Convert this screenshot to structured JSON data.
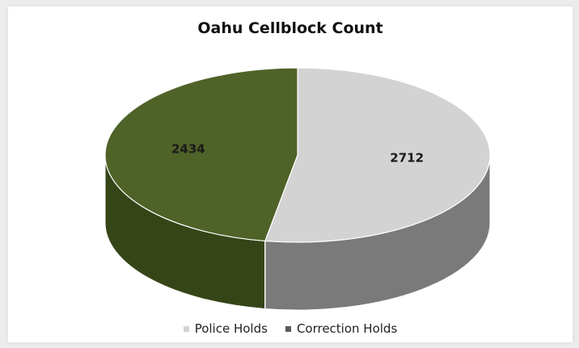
{
  "chart_data": {
    "type": "pie",
    "title": "Oahu Cellblock Count",
    "categories": [
      "Police Holds",
      "Correction Holds"
    ],
    "values": [
      2712,
      2434
    ],
    "data_labels": [
      "2712",
      "2434"
    ],
    "colors": {
      "Police Holds": "#d3d3d3",
      "Correction Holds": "#4f6228"
    },
    "side_colors": {
      "Police Holds": "#7a7a7a",
      "Correction Holds": "#364518"
    },
    "legend_swatch_colors": {
      "Police Holds": "#d3d3d3",
      "Correction Holds": "#5a5a5a"
    },
    "style": "3d",
    "legend_position": "bottom"
  }
}
